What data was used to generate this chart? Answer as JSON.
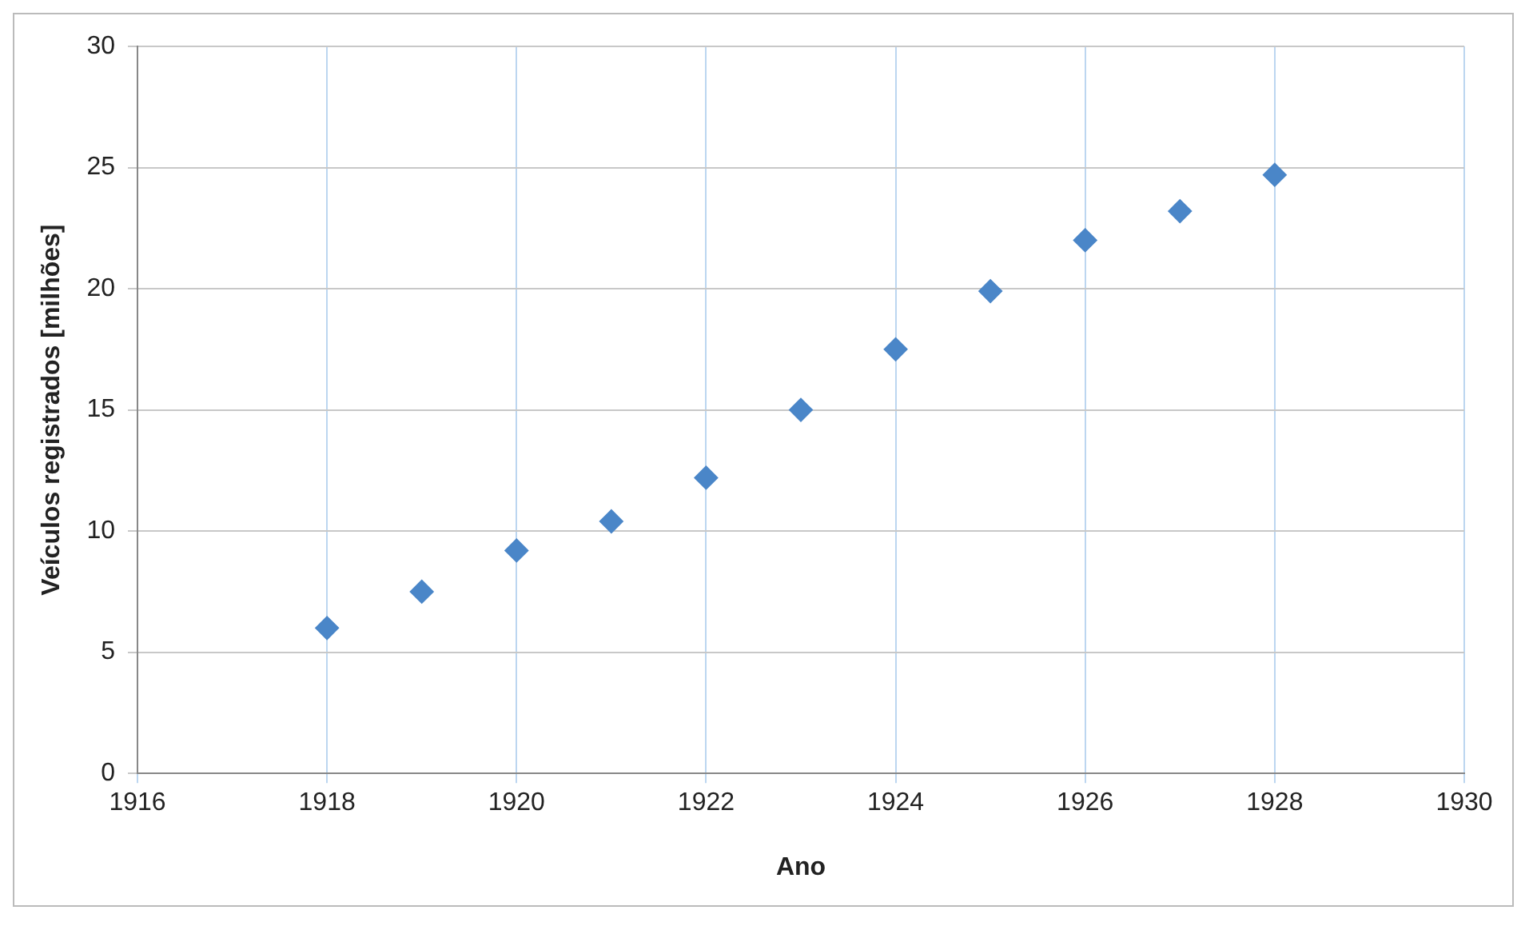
{
  "chart_data": {
    "type": "scatter",
    "xlabel": "Ano",
    "ylabel": "Veículos registrados [milhões]",
    "x": [
      1918,
      1919,
      1920,
      1921,
      1922,
      1923,
      1924,
      1925,
      1926,
      1927,
      1928
    ],
    "series": [
      {
        "color": "#4a86c8",
        "values": [
          6.0,
          7.5,
          9.2,
          10.4,
          12.2,
          15.0,
          17.5,
          19.9,
          22.0,
          23.2,
          24.7
        ]
      }
    ],
    "xlim": [
      1916,
      1930
    ],
    "xticks": [
      1916,
      1918,
      1920,
      1922,
      1924,
      1926,
      1928,
      1930
    ],
    "ylim": [
      0,
      30
    ],
    "yticks": [
      0,
      5,
      10,
      15,
      20,
      25,
      30
    ],
    "grid": true,
    "legend": false,
    "marker": "diamond"
  }
}
